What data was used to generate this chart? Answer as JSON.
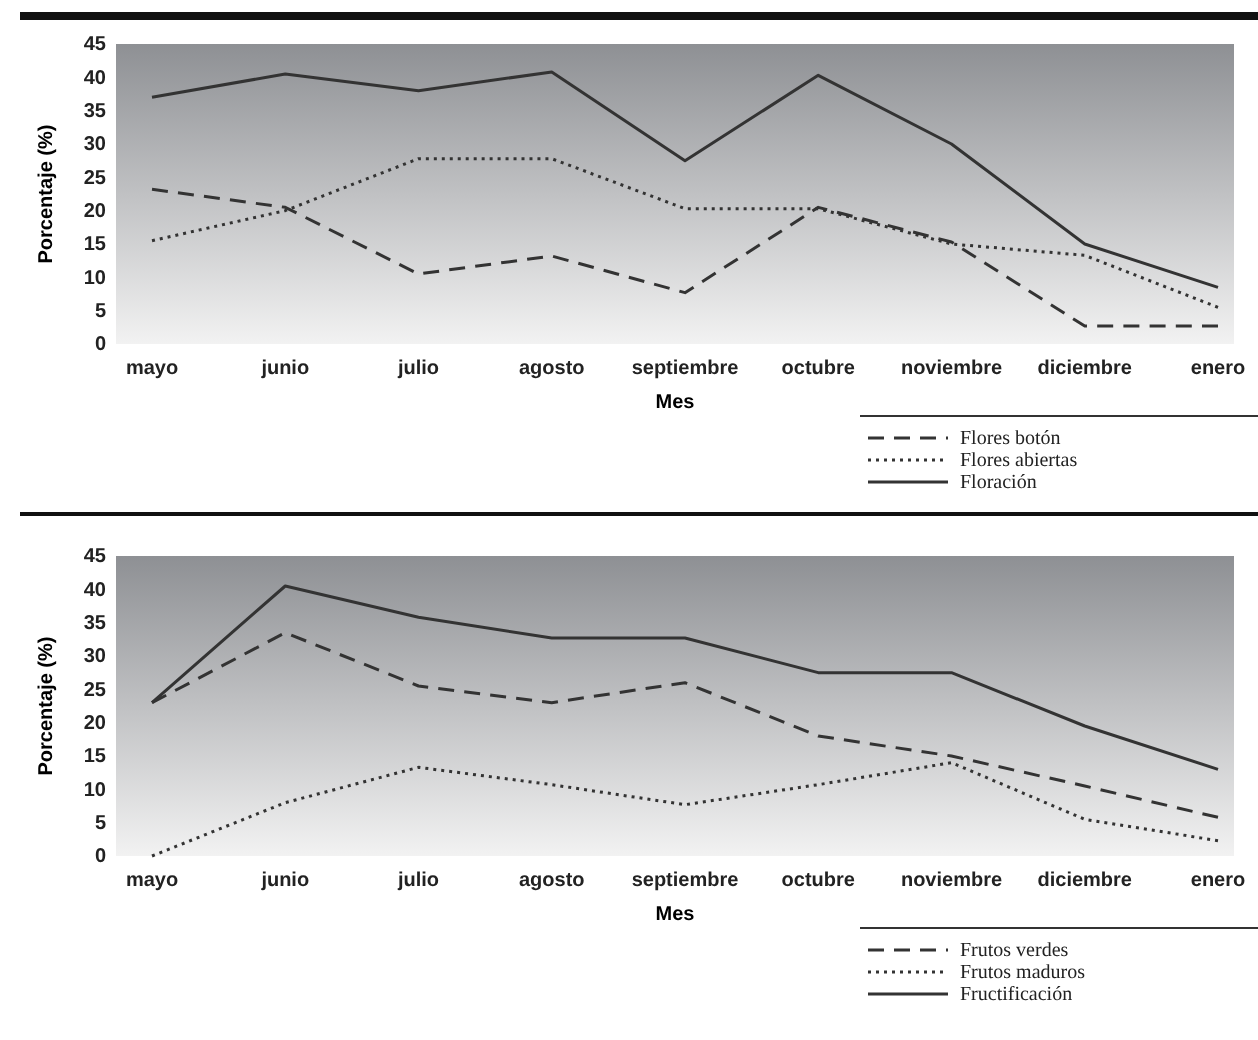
{
  "chart_data": [
    {
      "type": "line",
      "xlabel": "Mes",
      "ylabel": "Porcentaje (%)",
      "categories": [
        "mayo",
        "junio",
        "julio",
        "agosto",
        "septiembre",
        "octubre",
        "noviembre",
        "diciembre",
        "enero"
      ],
      "ylim": [
        0,
        45
      ],
      "yticks": [
        0,
        5,
        10,
        15,
        20,
        25,
        30,
        35,
        40,
        45
      ],
      "legend": "bottom right",
      "marker": "none",
      "series": [
        {
          "name": "Flores botón",
          "color": "#333333",
          "line_style": "dashed",
          "values": [
            23.2,
            20.5,
            10.5,
            13.2,
            7.7,
            20.5,
            15.3,
            2.7,
            2.7
          ]
        },
        {
          "name": "Flores abiertas",
          "color": "#333333",
          "line_style": "dotted",
          "values": [
            15.5,
            20,
            27.8,
            27.8,
            20.3,
            20.3,
            15,
            13.3,
            5.5
          ]
        },
        {
          "name": "Floración",
          "color": "#333333",
          "line_style": "solid",
          "values": [
            37,
            40.5,
            38,
            40.8,
            27.5,
            40.3,
            30,
            15,
            8.5
          ]
        }
      ]
    },
    {
      "type": "line",
      "xlabel": "Mes",
      "ylabel": "Porcentaje (%)",
      "categories": [
        "mayo",
        "junio",
        "julio",
        "agosto",
        "septiembre",
        "octubre",
        "noviembre",
        "diciembre",
        "enero"
      ],
      "ylim": [
        0,
        45
      ],
      "yticks": [
        0,
        5,
        10,
        15,
        20,
        25,
        30,
        35,
        40,
        45
      ],
      "legend": "bottom right",
      "marker": "none",
      "series": [
        {
          "name": "Frutos verdes",
          "color": "#333333",
          "line_style": "dashed",
          "values": [
            23,
            33.5,
            25.5,
            23,
            26,
            18,
            15,
            10.5,
            5.8
          ]
        },
        {
          "name": "Frutos maduros",
          "color": "#333333",
          "line_style": "dotted",
          "values": [
            0,
            8,
            13.3,
            10.7,
            7.7,
            10.7,
            14,
            5.5,
            2.3
          ]
        },
        {
          "name": "Fructificación",
          "color": "#333333",
          "line_style": "solid",
          "values": [
            23,
            40.5,
            35.8,
            32.7,
            32.7,
            27.5,
            27.5,
            19.5,
            13
          ]
        }
      ]
    }
  ]
}
